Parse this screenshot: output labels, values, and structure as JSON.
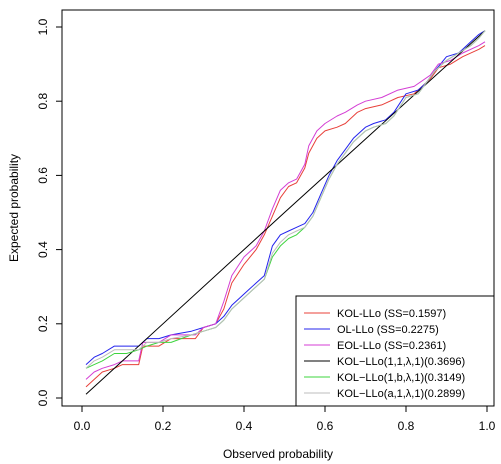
{
  "chart_data": {
    "type": "line",
    "title": "",
    "xlabel": "Observed probability",
    "ylabel": "Expected probability",
    "xlim": [
      0,
      1
    ],
    "ylim": [
      0,
      1
    ],
    "x_ticks": [
      {
        "value": 0.0,
        "label": "0.0"
      },
      {
        "value": 0.2,
        "label": "0.2"
      },
      {
        "value": 0.4,
        "label": "0.4"
      },
      {
        "value": 0.6,
        "label": "0.6"
      },
      {
        "value": 0.8,
        "label": "0.8"
      },
      {
        "value": 1.0,
        "label": "1.0"
      }
    ],
    "y_ticks": [
      {
        "value": 0.0,
        "label": "0.0"
      },
      {
        "value": 0.2,
        "label": "0.2"
      },
      {
        "value": 0.4,
        "label": "0.4"
      },
      {
        "value": 0.6,
        "label": "0.6"
      },
      {
        "value": 0.8,
        "label": "0.8"
      },
      {
        "value": 1.0,
        "label": "1.0"
      }
    ],
    "grid": false,
    "legend_position": "bottom-right",
    "series": [
      {
        "name": "KOL-LLo (SS=0.1597)",
        "color": "#e8403a",
        "points": [
          [
            0.01,
            0.03
          ],
          [
            0.03,
            0.05
          ],
          [
            0.05,
            0.07
          ],
          [
            0.08,
            0.08
          ],
          [
            0.1,
            0.09
          ],
          [
            0.14,
            0.09
          ],
          [
            0.15,
            0.14
          ],
          [
            0.19,
            0.14
          ],
          [
            0.22,
            0.16
          ],
          [
            0.28,
            0.16
          ],
          [
            0.3,
            0.19
          ],
          [
            0.33,
            0.2
          ],
          [
            0.35,
            0.24
          ],
          [
            0.37,
            0.31
          ],
          [
            0.4,
            0.36
          ],
          [
            0.43,
            0.4
          ],
          [
            0.45,
            0.44
          ],
          [
            0.47,
            0.49
          ],
          [
            0.49,
            0.54
          ],
          [
            0.51,
            0.57
          ],
          [
            0.53,
            0.58
          ],
          [
            0.55,
            0.62
          ],
          [
            0.56,
            0.66
          ],
          [
            0.58,
            0.7
          ],
          [
            0.6,
            0.72
          ],
          [
            0.63,
            0.73
          ],
          [
            0.65,
            0.74
          ],
          [
            0.68,
            0.77
          ],
          [
            0.7,
            0.78
          ],
          [
            0.74,
            0.79
          ],
          [
            0.78,
            0.81
          ],
          [
            0.82,
            0.82
          ],
          [
            0.86,
            0.86
          ],
          [
            0.88,
            0.89
          ],
          [
            0.91,
            0.9
          ],
          [
            0.94,
            0.92
          ],
          [
            0.98,
            0.94
          ],
          [
            0.995,
            0.95
          ]
        ]
      },
      {
        "name": "OL-LLo (SS=0.2275)",
        "color": "#2424ee",
        "points": [
          [
            0.01,
            0.09
          ],
          [
            0.03,
            0.11
          ],
          [
            0.05,
            0.12
          ],
          [
            0.08,
            0.14
          ],
          [
            0.11,
            0.14
          ],
          [
            0.14,
            0.14
          ],
          [
            0.16,
            0.16
          ],
          [
            0.19,
            0.16
          ],
          [
            0.22,
            0.17
          ],
          [
            0.27,
            0.18
          ],
          [
            0.3,
            0.19
          ],
          [
            0.33,
            0.2
          ],
          [
            0.35,
            0.22
          ],
          [
            0.37,
            0.25
          ],
          [
            0.39,
            0.27
          ],
          [
            0.41,
            0.29
          ],
          [
            0.43,
            0.31
          ],
          [
            0.45,
            0.33
          ],
          [
            0.47,
            0.41
          ],
          [
            0.49,
            0.44
          ],
          [
            0.51,
            0.45
          ],
          [
            0.53,
            0.46
          ],
          [
            0.55,
            0.47
          ],
          [
            0.57,
            0.5
          ],
          [
            0.59,
            0.55
          ],
          [
            0.61,
            0.6
          ],
          [
            0.63,
            0.64
          ],
          [
            0.65,
            0.67
          ],
          [
            0.67,
            0.7
          ],
          [
            0.7,
            0.73
          ],
          [
            0.72,
            0.74
          ],
          [
            0.75,
            0.75
          ],
          [
            0.77,
            0.77
          ],
          [
            0.8,
            0.82
          ],
          [
            0.83,
            0.83
          ],
          [
            0.85,
            0.85
          ],
          [
            0.87,
            0.88
          ],
          [
            0.9,
            0.92
          ],
          [
            0.93,
            0.93
          ],
          [
            0.96,
            0.96
          ],
          [
            0.98,
            0.98
          ],
          [
            0.995,
            0.99
          ]
        ]
      },
      {
        "name": "EOL-LLo (SS=0.2361)",
        "color": "#d43ed4",
        "points": [
          [
            0.01,
            0.05
          ],
          [
            0.03,
            0.07
          ],
          [
            0.05,
            0.08
          ],
          [
            0.08,
            0.09
          ],
          [
            0.1,
            0.1
          ],
          [
            0.14,
            0.1
          ],
          [
            0.15,
            0.15
          ],
          [
            0.19,
            0.15
          ],
          [
            0.22,
            0.17
          ],
          [
            0.28,
            0.17
          ],
          [
            0.3,
            0.19
          ],
          [
            0.33,
            0.2
          ],
          [
            0.35,
            0.26
          ],
          [
            0.37,
            0.33
          ],
          [
            0.4,
            0.38
          ],
          [
            0.43,
            0.41
          ],
          [
            0.45,
            0.45
          ],
          [
            0.47,
            0.51
          ],
          [
            0.49,
            0.56
          ],
          [
            0.51,
            0.58
          ],
          [
            0.53,
            0.59
          ],
          [
            0.55,
            0.63
          ],
          [
            0.56,
            0.68
          ],
          [
            0.58,
            0.72
          ],
          [
            0.6,
            0.74
          ],
          [
            0.63,
            0.76
          ],
          [
            0.65,
            0.77
          ],
          [
            0.68,
            0.79
          ],
          [
            0.7,
            0.8
          ],
          [
            0.74,
            0.81
          ],
          [
            0.78,
            0.83
          ],
          [
            0.82,
            0.84
          ],
          [
            0.86,
            0.87
          ],
          [
            0.88,
            0.9
          ],
          [
            0.91,
            0.91
          ],
          [
            0.94,
            0.93
          ],
          [
            0.98,
            0.95
          ],
          [
            0.995,
            0.96
          ]
        ]
      },
      {
        "name": "KOL−LLo(1,1,λ,1)(0.3696)",
        "color": "#000000",
        "points": [
          [
            0.01,
            0.01
          ],
          [
            0.5,
            0.5
          ],
          [
            0.995,
            0.99
          ]
        ]
      },
      {
        "name": "KOL−LLo(1,b,λ,1)(0.3149)",
        "color": "#3ed43e",
        "points": [
          [
            0.01,
            0.08
          ],
          [
            0.03,
            0.09
          ],
          [
            0.05,
            0.1
          ],
          [
            0.08,
            0.12
          ],
          [
            0.11,
            0.12
          ],
          [
            0.14,
            0.13
          ],
          [
            0.16,
            0.14
          ],
          [
            0.19,
            0.15
          ],
          [
            0.22,
            0.15
          ],
          [
            0.27,
            0.17
          ],
          [
            0.3,
            0.18
          ],
          [
            0.33,
            0.19
          ],
          [
            0.35,
            0.21
          ],
          [
            0.37,
            0.24
          ],
          [
            0.39,
            0.26
          ],
          [
            0.41,
            0.28
          ],
          [
            0.43,
            0.3
          ],
          [
            0.45,
            0.32
          ],
          [
            0.47,
            0.38
          ],
          [
            0.49,
            0.41
          ],
          [
            0.51,
            0.43
          ],
          [
            0.53,
            0.44
          ],
          [
            0.55,
            0.46
          ],
          [
            0.57,
            0.49
          ],
          [
            0.59,
            0.54
          ],
          [
            0.61,
            0.59
          ],
          [
            0.63,
            0.63
          ],
          [
            0.65,
            0.66
          ],
          [
            0.67,
            0.69
          ],
          [
            0.7,
            0.72
          ],
          [
            0.72,
            0.73
          ],
          [
            0.75,
            0.74
          ],
          [
            0.77,
            0.76
          ],
          [
            0.8,
            0.81
          ],
          [
            0.83,
            0.82
          ],
          [
            0.85,
            0.85
          ],
          [
            0.87,
            0.88
          ],
          [
            0.9,
            0.91
          ],
          [
            0.93,
            0.93
          ],
          [
            0.96,
            0.95
          ],
          [
            0.98,
            0.97
          ],
          [
            0.995,
            0.99
          ]
        ]
      },
      {
        "name": "KOL−LLo(a,1,λ,1)(0.2899)",
        "color": "#bcbcbc",
        "points": [
          [
            0.01,
            0.08
          ],
          [
            0.03,
            0.1
          ],
          [
            0.05,
            0.11
          ],
          [
            0.08,
            0.13
          ],
          [
            0.11,
            0.13
          ],
          [
            0.14,
            0.13
          ],
          [
            0.16,
            0.15
          ],
          [
            0.19,
            0.15
          ],
          [
            0.22,
            0.16
          ],
          [
            0.27,
            0.17
          ],
          [
            0.3,
            0.18
          ],
          [
            0.33,
            0.19
          ],
          [
            0.35,
            0.21
          ],
          [
            0.37,
            0.24
          ],
          [
            0.39,
            0.26
          ],
          [
            0.41,
            0.28
          ],
          [
            0.43,
            0.3
          ],
          [
            0.45,
            0.32
          ],
          [
            0.47,
            0.39
          ],
          [
            0.49,
            0.42
          ],
          [
            0.51,
            0.44
          ],
          [
            0.53,
            0.45
          ],
          [
            0.55,
            0.46
          ],
          [
            0.57,
            0.49
          ],
          [
            0.59,
            0.54
          ],
          [
            0.61,
            0.59
          ],
          [
            0.63,
            0.63
          ],
          [
            0.65,
            0.66
          ],
          [
            0.67,
            0.69
          ],
          [
            0.7,
            0.72
          ],
          [
            0.72,
            0.73
          ],
          [
            0.75,
            0.74
          ],
          [
            0.77,
            0.76
          ],
          [
            0.8,
            0.81
          ],
          [
            0.83,
            0.82
          ],
          [
            0.85,
            0.85
          ],
          [
            0.87,
            0.88
          ],
          [
            0.9,
            0.91
          ],
          [
            0.93,
            0.93
          ],
          [
            0.96,
            0.95
          ],
          [
            0.98,
            0.97
          ],
          [
            0.995,
            0.99
          ]
        ]
      }
    ]
  }
}
